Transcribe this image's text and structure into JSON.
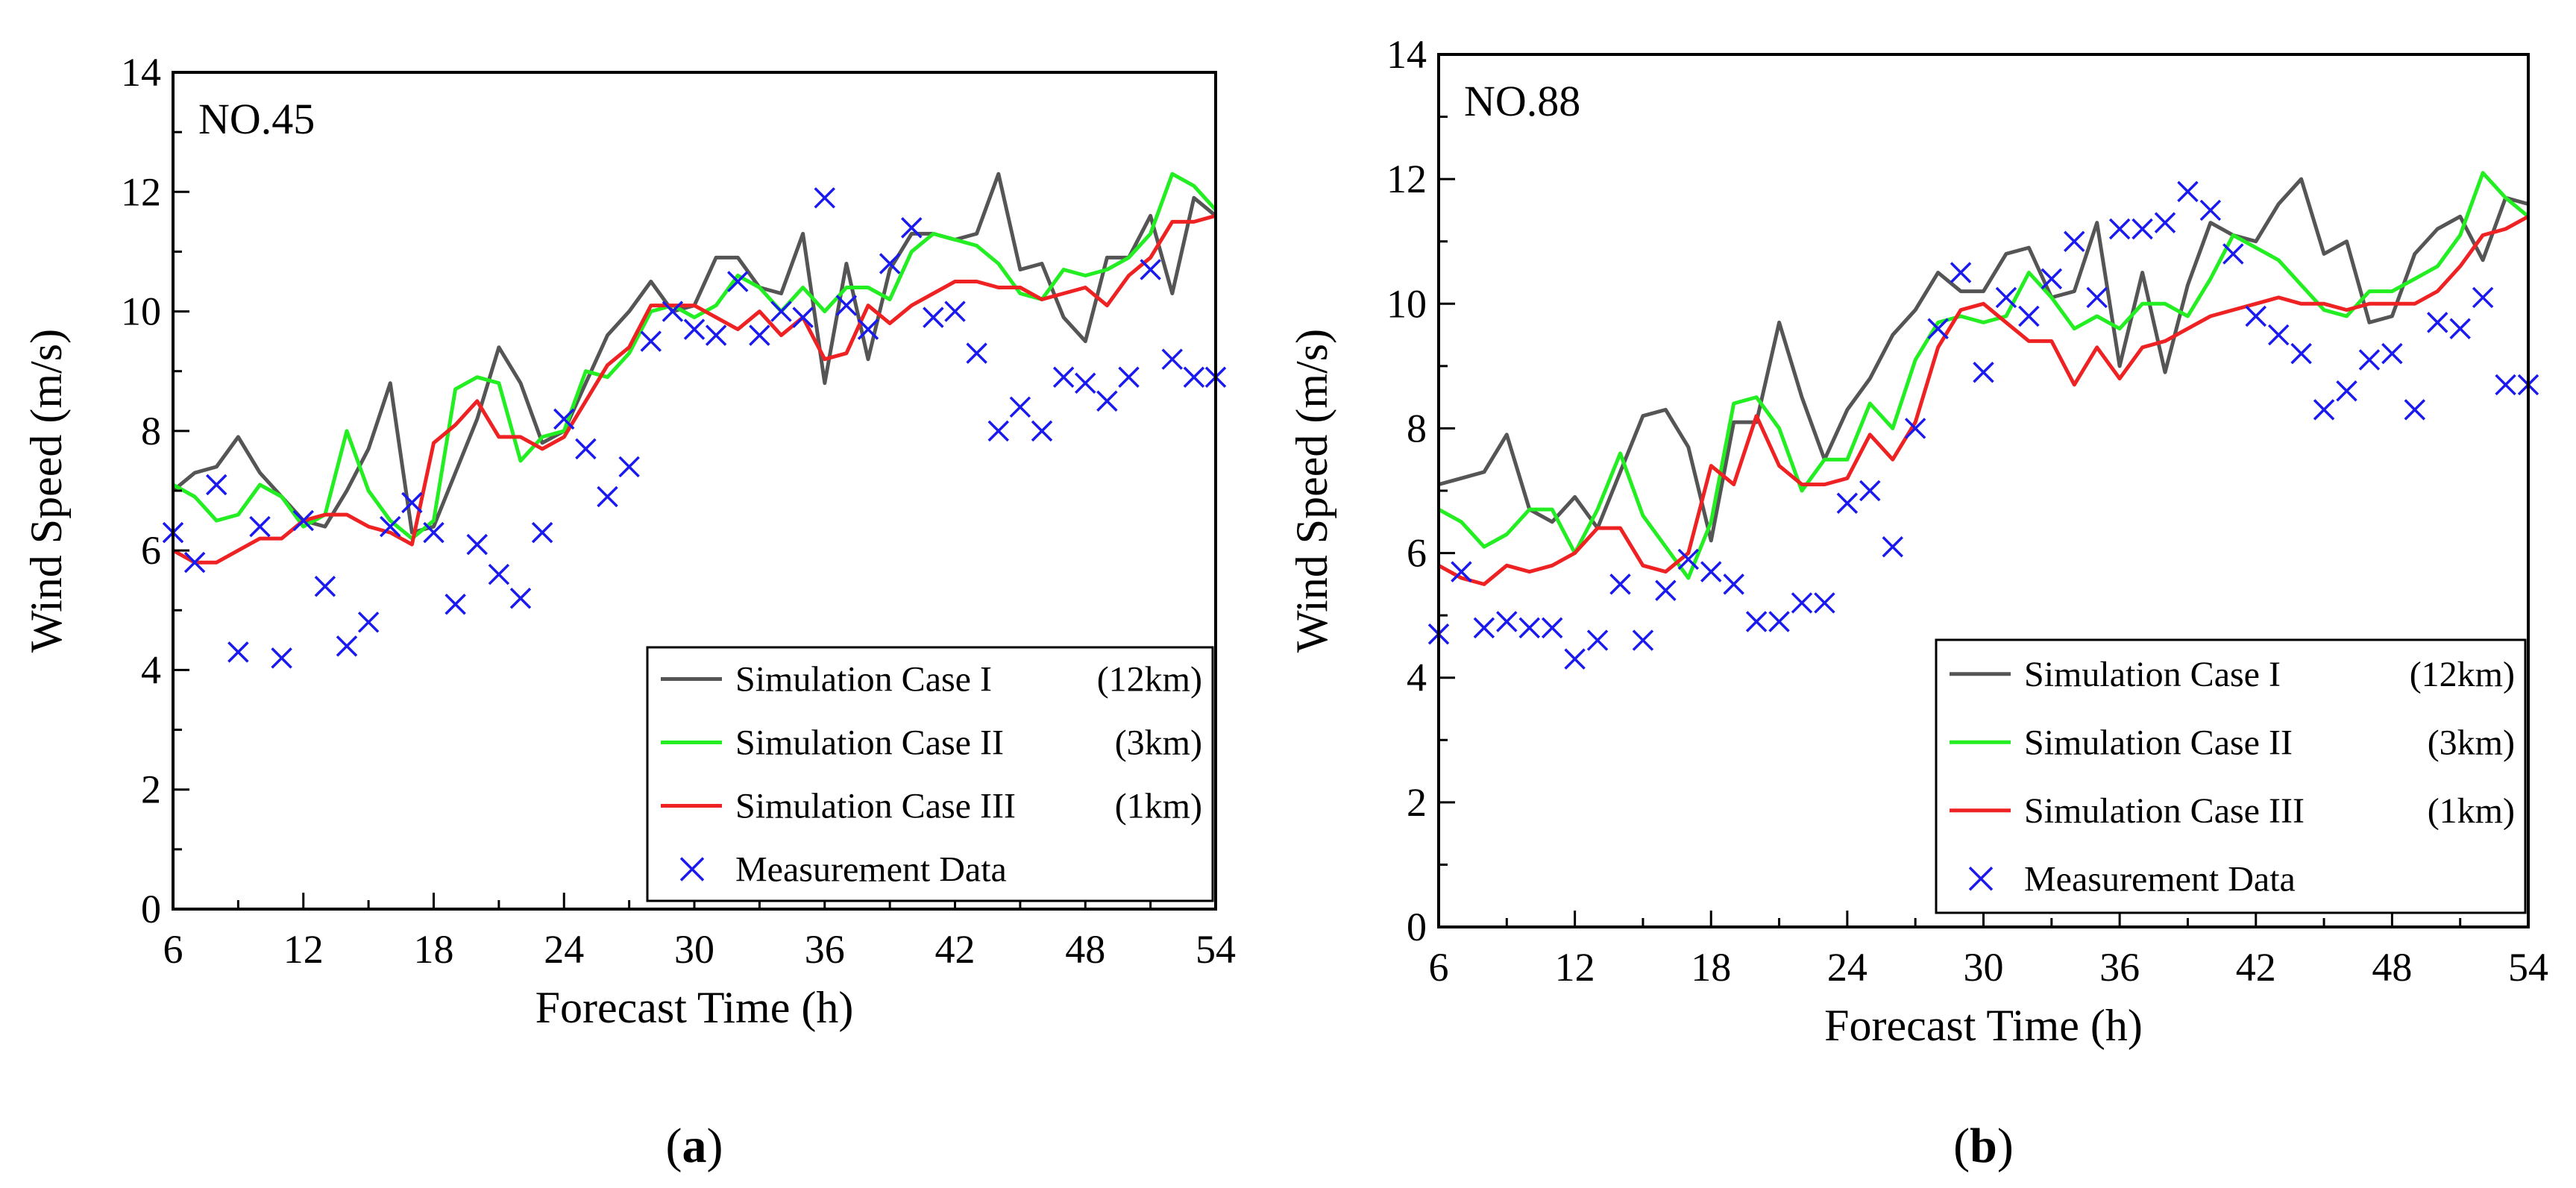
{
  "chart_data": [
    {
      "type": "line",
      "panel_label": "(a)",
      "panel_letter": "a",
      "station": "NO.45",
      "xlabel": "Forecast Time (h)",
      "ylabel": "Wind Speed (m/s)",
      "xlim": [
        6,
        54
      ],
      "ylim": [
        0,
        14
      ],
      "xticks": [
        6,
        12,
        18,
        24,
        30,
        36,
        42,
        48,
        54
      ],
      "yticks": [
        0,
        2,
        4,
        6,
        8,
        10,
        12,
        14
      ],
      "grid": false,
      "legend_position": "bottom-right",
      "series": [
        {
          "name": "Simulation Case I (12km)",
          "color": "#555555",
          "x": [
            6,
            7,
            8,
            9,
            10,
            11,
            12,
            13,
            14,
            15,
            16,
            17,
            18,
            19,
            20,
            21,
            22,
            23,
            24,
            25,
            26,
            27,
            28,
            29,
            30,
            31,
            32,
            33,
            34,
            35,
            36,
            37,
            38,
            39,
            40,
            41,
            42,
            43,
            44,
            45,
            46,
            47,
            48,
            49,
            50,
            51,
            52,
            53,
            54
          ],
          "values": [
            7.0,
            7.3,
            7.4,
            7.9,
            7.3,
            6.9,
            6.5,
            6.4,
            7.0,
            7.7,
            8.8,
            6.3,
            6.4,
            7.3,
            8.2,
            9.4,
            8.8,
            7.8,
            8.0,
            8.8,
            9.6,
            10.0,
            10.5,
            10.0,
            10.1,
            10.9,
            10.9,
            10.4,
            10.3,
            11.3,
            8.8,
            10.8,
            9.2,
            10.7,
            11.3,
            11.3,
            11.2,
            11.3,
            12.3,
            10.7,
            10.8,
            9.9,
            9.5,
            10.9,
            10.9,
            11.6,
            10.3,
            11.9,
            11.6
          ]
        },
        {
          "name": "Simulation Case II (3km)",
          "color": "#22ee22",
          "x": [
            6,
            7,
            8,
            9,
            10,
            11,
            12,
            13,
            14,
            15,
            16,
            17,
            18,
            19,
            20,
            21,
            22,
            23,
            24,
            25,
            26,
            27,
            28,
            29,
            30,
            31,
            32,
            33,
            34,
            35,
            36,
            37,
            38,
            39,
            40,
            41,
            42,
            43,
            44,
            45,
            46,
            47,
            48,
            49,
            50,
            51,
            52,
            53,
            54
          ],
          "values": [
            7.1,
            6.9,
            6.5,
            6.6,
            7.1,
            6.9,
            6.4,
            6.6,
            8.0,
            7.0,
            6.5,
            6.2,
            6.5,
            8.7,
            8.9,
            8.8,
            7.5,
            7.9,
            8.0,
            9.0,
            8.9,
            9.3,
            10.0,
            10.1,
            9.9,
            10.1,
            10.6,
            10.4,
            10.0,
            10.4,
            10.0,
            10.4,
            10.4,
            10.2,
            11.0,
            11.3,
            11.2,
            11.1,
            10.8,
            10.3,
            10.2,
            10.7,
            10.6,
            10.7,
            10.9,
            11.3,
            12.3,
            12.1,
            11.7
          ]
        },
        {
          "name": "Simulation Case III (1km)",
          "color": "#ee2222",
          "x": [
            6,
            7,
            8,
            9,
            10,
            11,
            12,
            13,
            14,
            15,
            16,
            17,
            18,
            19,
            20,
            21,
            22,
            23,
            24,
            25,
            26,
            27,
            28,
            29,
            30,
            31,
            32,
            33,
            34,
            35,
            36,
            37,
            38,
            39,
            40,
            41,
            42,
            43,
            44,
            45,
            46,
            47,
            48,
            49,
            50,
            51,
            52,
            53,
            54
          ],
          "values": [
            6.0,
            5.8,
            5.8,
            6.0,
            6.2,
            6.2,
            6.5,
            6.6,
            6.6,
            6.4,
            6.3,
            6.1,
            7.8,
            8.1,
            8.5,
            7.9,
            7.9,
            7.7,
            7.9,
            8.5,
            9.1,
            9.4,
            10.1,
            10.1,
            10.1,
            9.9,
            9.7,
            10.0,
            9.6,
            9.9,
            9.2,
            9.3,
            10.1,
            9.8,
            10.1,
            10.3,
            10.5,
            10.5,
            10.4,
            10.4,
            10.2,
            10.3,
            10.4,
            10.1,
            10.6,
            10.9,
            11.5,
            11.5,
            11.6
          ]
        },
        {
          "name": "Measurement Data",
          "color": "#1a1aee",
          "marker": "x",
          "x": [
            6,
            7,
            8,
            9,
            10,
            11,
            12,
            13,
            14,
            15,
            16,
            17,
            18,
            19,
            20,
            21,
            22,
            23,
            24,
            25,
            26,
            27,
            28,
            29,
            30,
            31,
            32,
            33,
            34,
            35,
            36,
            37,
            38,
            39,
            40,
            41,
            42,
            43,
            44,
            45,
            46,
            47,
            48,
            49,
            50,
            51,
            52,
            53,
            54
          ],
          "values": [
            6.3,
            5.8,
            7.1,
            4.3,
            6.4,
            4.2,
            6.5,
            5.4,
            4.4,
            4.8,
            6.4,
            6.8,
            6.3,
            5.1,
            6.1,
            5.6,
            5.2,
            6.3,
            8.2,
            7.7,
            6.9,
            7.4,
            9.5,
            10.0,
            9.7,
            9.6,
            10.5,
            9.6,
            10.0,
            9.9,
            11.9,
            10.1,
            9.7,
            10.8,
            11.4,
            9.9,
            10.0,
            9.3,
            8.0,
            8.4,
            8.0,
            8.9,
            8.8,
            8.5,
            8.9,
            10.7,
            9.2,
            8.9,
            8.9
          ]
        }
      ]
    },
    {
      "type": "line",
      "panel_label": "(b)",
      "panel_letter": "b",
      "station": "NO.88",
      "xlabel": "Forecast Time (h)",
      "ylabel": "Wind Speed (m/s)",
      "xlim": [
        6,
        54
      ],
      "ylim": [
        0,
        14
      ],
      "xticks": [
        6,
        12,
        18,
        24,
        30,
        36,
        42,
        48,
        54
      ],
      "yticks": [
        0,
        2,
        4,
        6,
        8,
        10,
        12,
        14
      ],
      "grid": false,
      "legend_position": "bottom-right",
      "series": [
        {
          "name": "Simulation Case I (12km)",
          "color": "#555555",
          "x": [
            6,
            7,
            8,
            9,
            10,
            11,
            12,
            13,
            14,
            15,
            16,
            17,
            18,
            19,
            20,
            21,
            22,
            23,
            24,
            25,
            26,
            27,
            28,
            29,
            30,
            31,
            32,
            33,
            34,
            35,
            36,
            37,
            38,
            39,
            40,
            41,
            42,
            43,
            44,
            45,
            46,
            47,
            48,
            49,
            50,
            51,
            52,
            53,
            54
          ],
          "values": [
            7.1,
            7.2,
            7.3,
            7.9,
            6.7,
            6.5,
            6.9,
            6.4,
            7.3,
            8.2,
            8.3,
            7.7,
            6.2,
            8.1,
            8.1,
            9.7,
            8.5,
            7.5,
            8.3,
            8.8,
            9.5,
            9.9,
            10.5,
            10.2,
            10.2,
            10.8,
            10.9,
            10.1,
            10.2,
            11.3,
            9.0,
            10.5,
            8.9,
            10.3,
            11.3,
            11.1,
            11.0,
            11.6,
            12.0,
            10.8,
            11.0,
            9.7,
            9.8,
            10.8,
            11.2,
            11.4,
            10.7,
            11.7,
            11.6
          ]
        },
        {
          "name": "Simulation Case II (3km)",
          "color": "#22ee22",
          "x": [
            6,
            7,
            8,
            9,
            10,
            11,
            12,
            13,
            14,
            15,
            16,
            17,
            18,
            19,
            20,
            21,
            22,
            23,
            24,
            25,
            26,
            27,
            28,
            29,
            30,
            31,
            32,
            33,
            34,
            35,
            36,
            37,
            38,
            39,
            40,
            41,
            42,
            43,
            44,
            45,
            46,
            47,
            48,
            49,
            50,
            51,
            52,
            53,
            54
          ],
          "values": [
            6.7,
            6.5,
            6.1,
            6.3,
            6.7,
            6.7,
            6.0,
            6.7,
            7.6,
            6.6,
            6.1,
            5.6,
            6.5,
            8.4,
            8.5,
            8.0,
            7.0,
            7.5,
            7.5,
            8.4,
            8.0,
            9.1,
            9.7,
            9.8,
            9.7,
            9.8,
            10.5,
            10.1,
            9.6,
            9.8,
            9.6,
            10.0,
            10.0,
            9.8,
            10.4,
            11.1,
            10.9,
            10.7,
            10.3,
            9.9,
            9.8,
            10.2,
            10.2,
            10.4,
            10.6,
            11.1,
            12.1,
            11.7,
            11.4
          ]
        },
        {
          "name": "Simulation Case III (1km)",
          "color": "#ee2222",
          "x": [
            6,
            7,
            8,
            9,
            10,
            11,
            12,
            13,
            14,
            15,
            16,
            17,
            18,
            19,
            20,
            21,
            22,
            23,
            24,
            25,
            26,
            27,
            28,
            29,
            30,
            31,
            32,
            33,
            34,
            35,
            36,
            37,
            38,
            39,
            40,
            41,
            42,
            43,
            44,
            45,
            46,
            47,
            48,
            49,
            50,
            51,
            52,
            53,
            54
          ],
          "values": [
            5.8,
            5.6,
            5.5,
            5.8,
            5.7,
            5.8,
            6.0,
            6.4,
            6.4,
            5.8,
            5.7,
            6.0,
            7.4,
            7.1,
            8.2,
            7.4,
            7.1,
            7.1,
            7.2,
            7.9,
            7.5,
            8.1,
            9.3,
            9.9,
            10.0,
            9.7,
            9.4,
            9.4,
            8.7,
            9.3,
            8.8,
            9.3,
            9.4,
            9.6,
            9.8,
            9.9,
            10.0,
            10.1,
            10.0,
            10.0,
            9.9,
            10.0,
            10.0,
            10.0,
            10.2,
            10.6,
            11.1,
            11.2,
            11.4
          ]
        },
        {
          "name": "Measurement Data",
          "color": "#1a1aee",
          "marker": "x",
          "x": [
            6,
            7,
            8,
            9,
            10,
            11,
            12,
            13,
            14,
            15,
            16,
            17,
            18,
            19,
            20,
            21,
            22,
            23,
            24,
            25,
            26,
            27,
            28,
            29,
            30,
            31,
            32,
            33,
            34,
            35,
            36,
            37,
            38,
            39,
            40,
            41,
            42,
            43,
            44,
            45,
            46,
            47,
            48,
            49,
            50,
            51,
            52,
            53,
            54
          ],
          "values": [
            4.7,
            5.7,
            4.8,
            4.9,
            4.8,
            4.8,
            4.3,
            4.6,
            5.5,
            4.6,
            5.4,
            5.9,
            5.7,
            5.5,
            4.9,
            4.9,
            5.2,
            5.2,
            6.8,
            7.0,
            6.1,
            8.0,
            9.6,
            10.5,
            8.9,
            10.1,
            9.8,
            10.4,
            11.0,
            10.1,
            11.2,
            11.2,
            11.3,
            11.8,
            11.5,
            10.8,
            9.8,
            9.5,
            9.2,
            8.3,
            8.6,
            9.1,
            9.2,
            8.3,
            9.7,
            9.6,
            10.1,
            8.7,
            8.7
          ]
        }
      ]
    }
  ],
  "legend": {
    "entries": [
      {
        "name": "Simulation Case I",
        "res": "(12km)"
      },
      {
        "name": "Simulation Case II",
        "res": "(3km)"
      },
      {
        "name": "Simulation Case III",
        "res": "(1km)"
      },
      {
        "name": "Measurement Data",
        "res": ""
      }
    ]
  }
}
